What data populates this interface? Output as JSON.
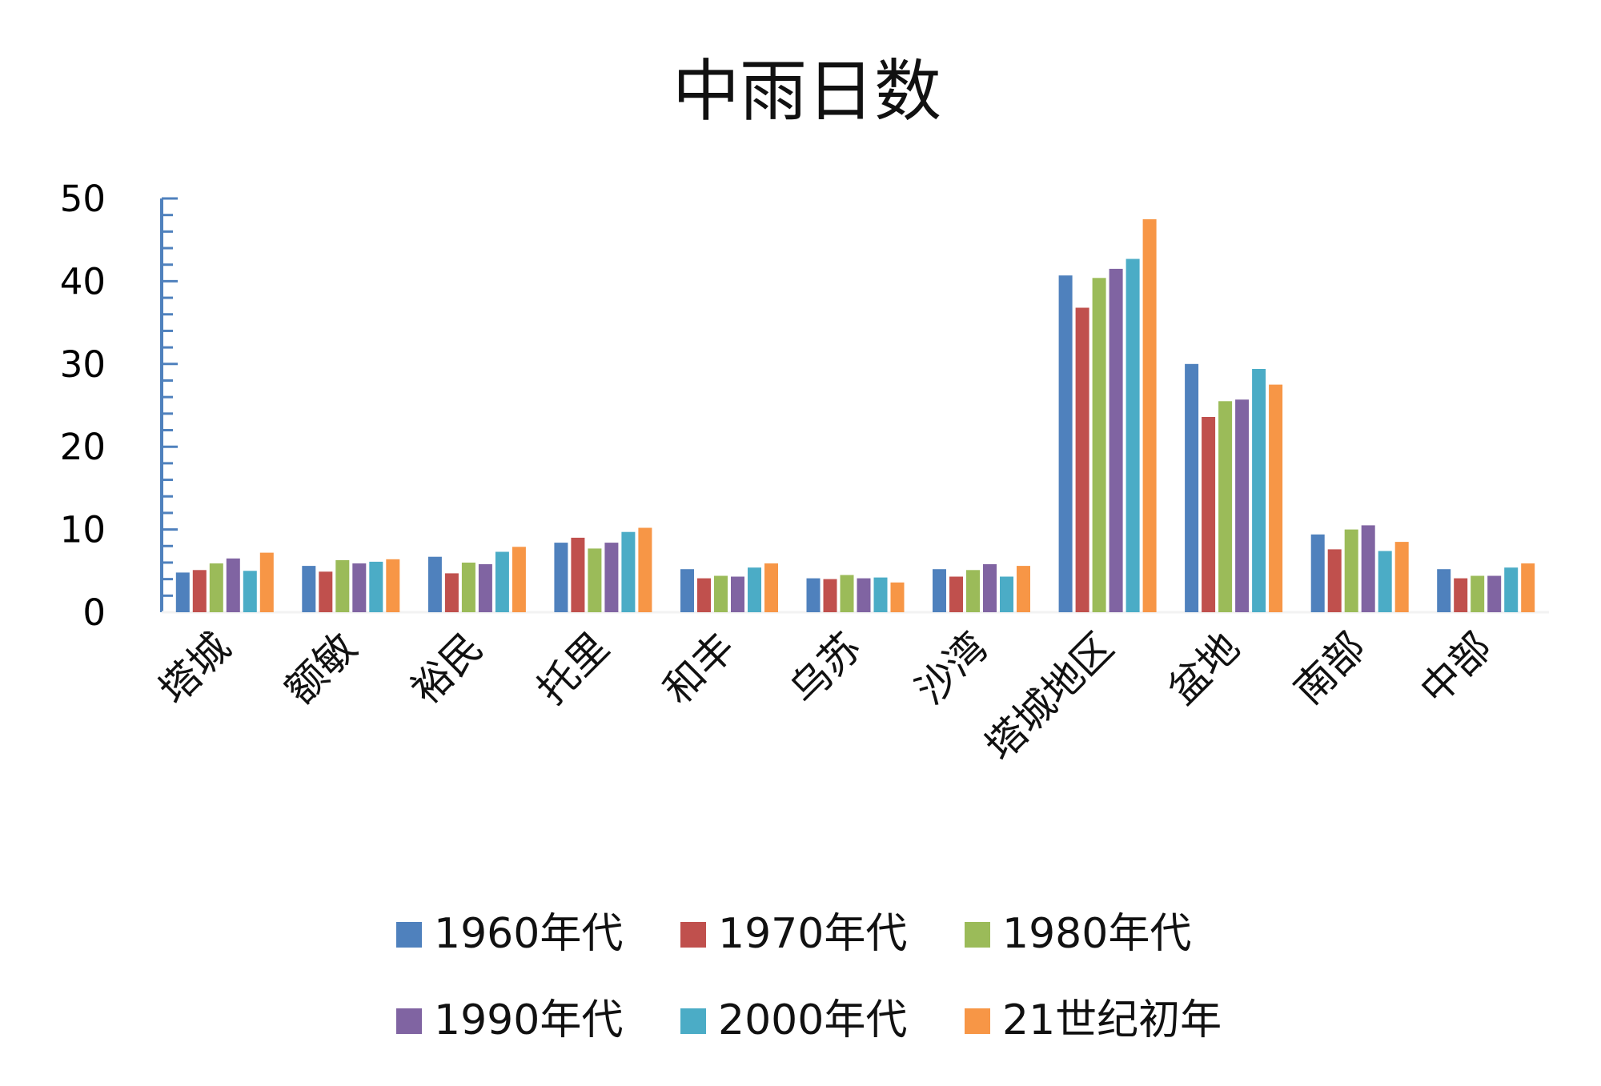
{
  "chart_data": {
    "type": "bar",
    "title": "中雨日数",
    "xlabel": "",
    "ylabel": "",
    "ylim": [
      0,
      50
    ],
    "yticks": [
      "0",
      "10",
      "20",
      "30",
      "40",
      "50"
    ],
    "grid": false,
    "legend_position": "bottom",
    "categories": [
      "塔城",
      "额敏",
      "裕民",
      "托里",
      "和丰",
      "乌苏",
      "沙湾",
      "塔城地区",
      "盆地",
      "南部",
      "中部"
    ],
    "series": [
      {
        "name": "1960年代",
        "color": "#4F81BD",
        "values": [
          4.8,
          5.6,
          6.7,
          8.4,
          5.2,
          4.1,
          5.2,
          40.7,
          30.0,
          9.4,
          5.2
        ]
      },
      {
        "name": "1970年代",
        "color": "#C0504D",
        "values": [
          5.1,
          4.9,
          4.7,
          9.0,
          4.1,
          4.0,
          4.3,
          36.8,
          23.6,
          7.6,
          4.1
        ]
      },
      {
        "name": "1980年代",
        "color": "#9BBB59",
        "values": [
          5.9,
          6.3,
          6.0,
          7.7,
          4.4,
          4.5,
          5.1,
          40.4,
          25.5,
          10.0,
          4.4
        ]
      },
      {
        "name": "1990年代",
        "color": "#8064A2",
        "values": [
          6.5,
          5.9,
          5.8,
          8.4,
          4.3,
          4.1,
          5.8,
          41.5,
          25.7,
          10.5,
          4.4
        ]
      },
      {
        "name": "2000年代",
        "color": "#4BACC6",
        "values": [
          5.0,
          6.1,
          7.3,
          9.7,
          5.4,
          4.2,
          4.3,
          42.7,
          29.4,
          7.4,
          5.4
        ]
      },
      {
        "name": "21世纪初年",
        "color": "#F79646",
        "values": [
          7.2,
          6.4,
          7.9,
          10.2,
          5.9,
          3.6,
          5.6,
          47.5,
          27.5,
          8.5,
          5.9
        ]
      }
    ]
  }
}
